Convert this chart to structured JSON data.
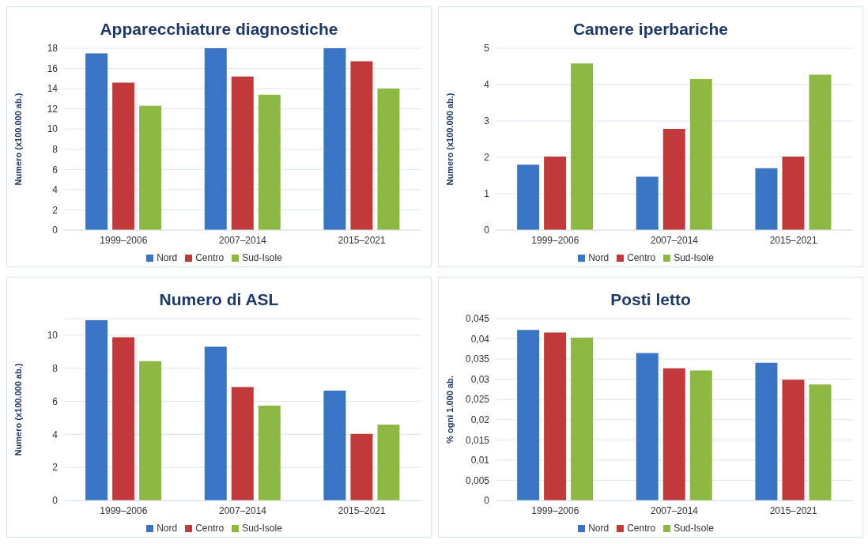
{
  "chart_data": [
    {
      "type": "bar",
      "title": "Apparecchiature diagnostiche",
      "ylabel": "Numero (x100.000 ab.)",
      "categories": [
        "1999–2006",
        "2007–2014",
        "2015–2021"
      ],
      "series": [
        {
          "name": "Nord",
          "color": "#3a75c4",
          "values": [
            17.5,
            18,
            18
          ]
        },
        {
          "name": "Centro",
          "color": "#c0393b",
          "values": [
            14.6,
            15.2,
            16.7
          ]
        },
        {
          "name": "Sud-Isole",
          "color": "#8db843",
          "values": [
            12.3,
            13.4,
            14.0
          ]
        }
      ],
      "ylim": [
        0,
        18
      ],
      "yticks": [
        0,
        2,
        4,
        6,
        8,
        10,
        12,
        14,
        16,
        18
      ],
      "grid": "y",
      "legend": "bottom"
    },
    {
      "type": "bar",
      "title": "Camere iperbariche",
      "ylabel": "Numero (x100.000 ab.)",
      "categories": [
        "1999–2006",
        "2007–2014",
        "2015–2021"
      ],
      "series": [
        {
          "name": "Nord",
          "color": "#3a75c4",
          "values": [
            1.8,
            1.47,
            1.7
          ]
        },
        {
          "name": "Centro",
          "color": "#c0393b",
          "values": [
            2.02,
            2.78,
            2.02
          ]
        },
        {
          "name": "Sud-Isole",
          "color": "#8db843",
          "values": [
            4.58,
            4.15,
            4.27
          ]
        }
      ],
      "ylim": [
        0,
        5
      ],
      "yticks": [
        0,
        1,
        2,
        3,
        4,
        5
      ],
      "grid": "y",
      "legend": "bottom"
    },
    {
      "type": "bar",
      "title": "Numero di ASL",
      "ylabel": "Numero (x100.000 ab.)",
      "categories": [
        "1999–2006",
        "2007–2014",
        "2015–2021"
      ],
      "series": [
        {
          "name": "Nord",
          "color": "#3a75c4",
          "values": [
            10.9,
            9.3,
            6.65
          ]
        },
        {
          "name": "Centro",
          "color": "#c0393b",
          "values": [
            9.88,
            6.86,
            4.03
          ]
        },
        {
          "name": "Sud-Isole",
          "color": "#8db843",
          "values": [
            8.43,
            5.74,
            4.59
          ]
        }
      ],
      "ylim": [
        0,
        11
      ],
      "yticks": [
        0,
        2,
        4,
        6,
        8,
        10
      ],
      "grid": "y",
      "legend": "bottom"
    },
    {
      "type": "bar",
      "title": "Posti letto",
      "ylabel": "% ogni 1.000 ab.",
      "categories": [
        "1999–2006",
        "2007–2014",
        "2015–2021"
      ],
      "series": [
        {
          "name": "Nord",
          "color": "#3a75c4",
          "values": [
            0.0422,
            0.0365,
            0.0341
          ]
        },
        {
          "name": "Centro",
          "color": "#c0393b",
          "values": [
            0.0416,
            0.0327,
            0.0299
          ]
        },
        {
          "name": "Sud-Isole",
          "color": "#8db843",
          "values": [
            0.0403,
            0.0322,
            0.0287
          ]
        }
      ],
      "ylim": [
        0,
        0.045
      ],
      "yticks": [
        0,
        {
          "value": 0.005,
          "label": "0,005"
        },
        {
          "value": 0.01,
          "label": "0,01"
        },
        {
          "value": 0.015,
          "label": "0,015"
        },
        {
          "value": 0.02,
          "label": "0,02"
        },
        {
          "value": 0.025,
          "label": "0,025"
        },
        {
          "value": 0.03,
          "label": "0,03"
        },
        {
          "value": 0.035,
          "label": "0,035"
        },
        {
          "value": 0.04,
          "label": "0,04"
        },
        {
          "value": 0.045,
          "label": "0,045"
        }
      ],
      "grid": "y",
      "legend": "bottom"
    }
  ]
}
